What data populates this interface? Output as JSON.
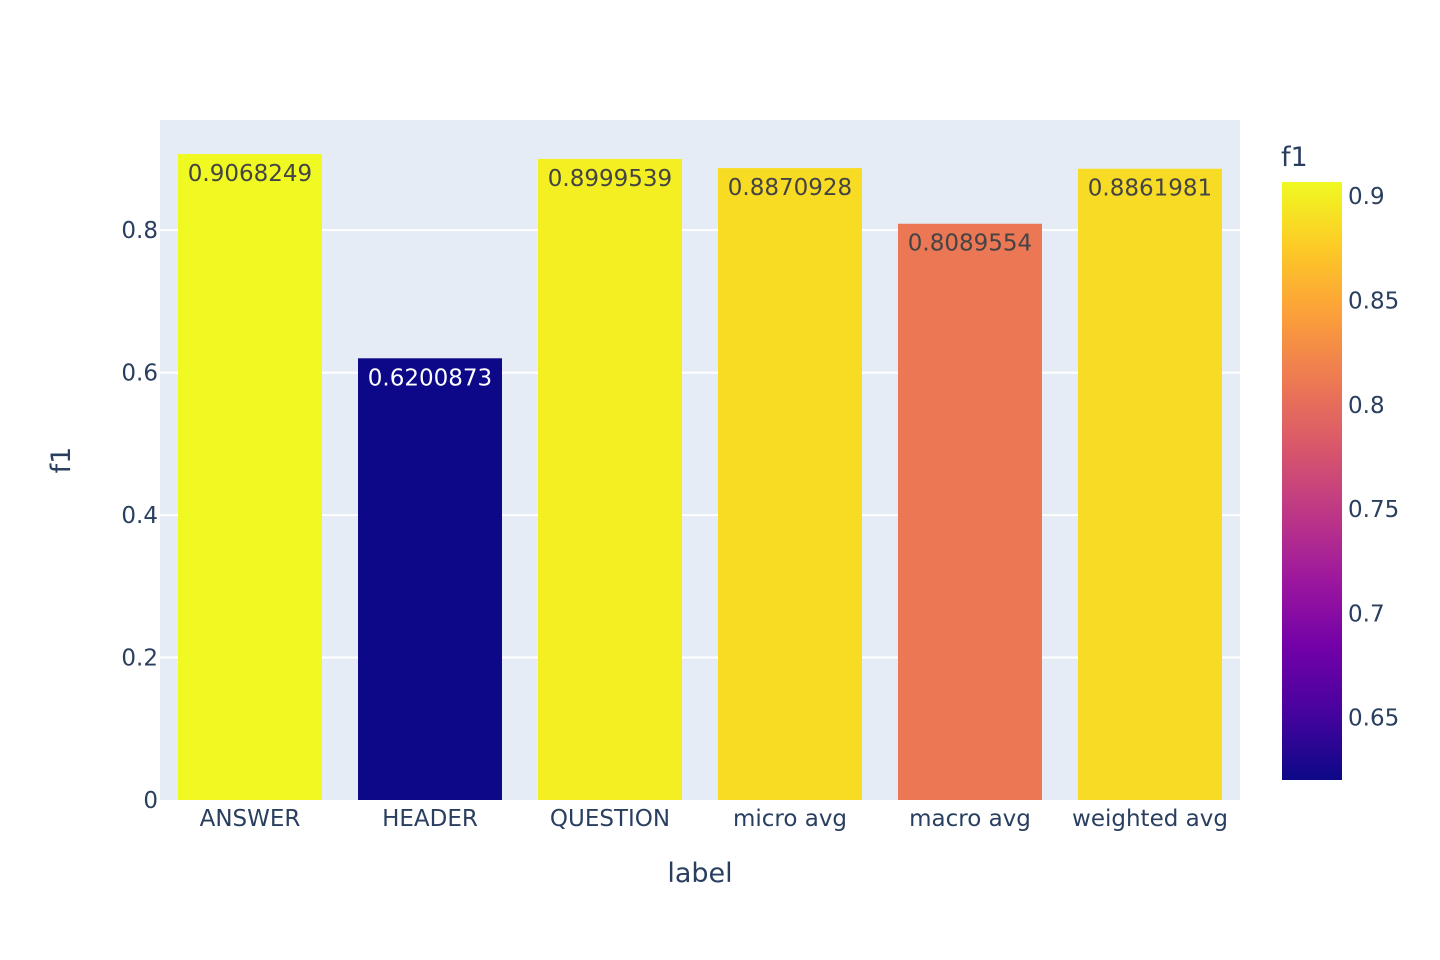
{
  "chart_data": {
    "type": "bar",
    "xlabel": "label",
    "ylabel": "f1",
    "categories": [
      "ANSWER",
      "HEADER",
      "QUESTION",
      "micro avg",
      "macro avg",
      "weighted avg"
    ],
    "values": [
      0.9068249,
      0.6200873,
      0.8999539,
      0.8870928,
      0.8089554,
      0.8861981
    ],
    "value_labels": [
      "0.9068249",
      "0.6200873",
      "0.8999539",
      "0.8870928",
      "0.8089554",
      "0.8861981"
    ],
    "ylim": [
      0,
      0.9546
    ],
    "yticks": [
      0,
      0.2,
      0.4,
      0.6,
      0.8
    ],
    "ytick_labels": [
      "0",
      "0.2",
      "0.4",
      "0.6",
      "0.8"
    ],
    "grid": true,
    "plot_background": "#e5ecf6",
    "colorbar": {
      "title": "f1",
      "range": [
        0.6200873,
        0.9068249
      ],
      "ticks": [
        0.65,
        0.7,
        0.75,
        0.8,
        0.85,
        0.9
      ],
      "tick_labels": [
        "0.65",
        "0.7",
        "0.75",
        "0.8",
        "0.85",
        "0.9"
      ],
      "colorscale": [
        "#0d0887",
        "#46039f",
        "#7201a8",
        "#9c179e",
        "#bd3786",
        "#d8576b",
        "#ed7953",
        "#fb9f3a",
        "#fdca26",
        "#f0f921"
      ]
    }
  }
}
